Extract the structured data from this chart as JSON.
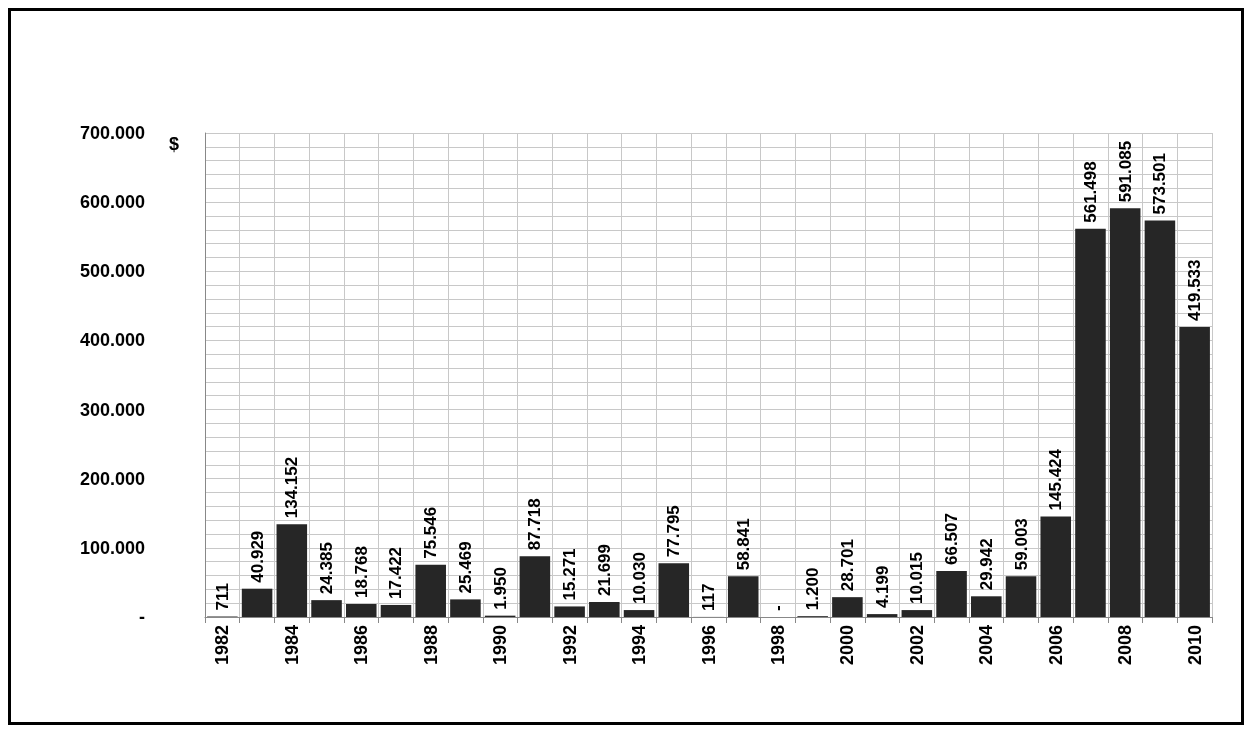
{
  "chart_data": {
    "type": "bar",
    "ylabel": "$",
    "categories": [
      "1982",
      null,
      "1984",
      null,
      "1986",
      null,
      "1988",
      null,
      "1990",
      null,
      "1992",
      null,
      "1994",
      null,
      "1996",
      null,
      "1998",
      null,
      "2000",
      null,
      "2002",
      null,
      "2004",
      null,
      "2006",
      null,
      "2008",
      null,
      "2010"
    ],
    "values": [
      711,
      40929,
      134152,
      24385,
      18768,
      17422,
      75546,
      25469,
      1950,
      87718,
      15271,
      21699,
      10030,
      77795,
      117,
      58841,
      0,
      1200,
      28701,
      4199,
      10015,
      66507,
      29942,
      59003,
      145424,
      561498,
      591085,
      573501,
      419533
    ],
    "value_labels": [
      "711",
      "40.929",
      "134.152",
      "24.385",
      "18.768",
      "17.422",
      "75.546",
      "25.469",
      "1.950",
      "87.718",
      "15.271",
      "21.699",
      "10.030",
      "77.795",
      "117",
      "58.841",
      "-",
      "1.200",
      "28.701",
      "4.199",
      "10.015",
      "66.507",
      "29.942",
      "59.003",
      "145.424",
      "561.498",
      "591.085",
      "573.501",
      "419.533"
    ],
    "color": "#262626",
    "ylim": [
      0,
      700000
    ],
    "yticks": [
      {
        "value": 0,
        "label": "-"
      },
      {
        "value": 20000,
        "label": null
      },
      {
        "value": 40000,
        "label": null
      },
      {
        "value": 60000,
        "label": null
      },
      {
        "value": 80000,
        "label": null
      },
      {
        "value": 100000,
        "label": "100.000"
      },
      {
        "value": 120000,
        "label": null
      },
      {
        "value": 140000,
        "label": null
      },
      {
        "value": 160000,
        "label": null
      },
      {
        "value": 180000,
        "label": null
      },
      {
        "value": 200000,
        "label": "200.000"
      },
      {
        "value": 220000,
        "label": null
      },
      {
        "value": 240000,
        "label": null
      },
      {
        "value": 260000,
        "label": null
      },
      {
        "value": 280000,
        "label": null
      },
      {
        "value": 300000,
        "label": "300.000"
      },
      {
        "value": 320000,
        "label": null
      },
      {
        "value": 340000,
        "label": null
      },
      {
        "value": 360000,
        "label": null
      },
      {
        "value": 380000,
        "label": null
      },
      {
        "value": 400000,
        "label": "400.000"
      },
      {
        "value": 420000,
        "label": null
      },
      {
        "value": 440000,
        "label": null
      },
      {
        "value": 460000,
        "label": null
      },
      {
        "value": 480000,
        "label": null
      },
      {
        "value": 500000,
        "label": "500.000"
      },
      {
        "value": 520000,
        "label": null
      },
      {
        "value": 540000,
        "label": null
      },
      {
        "value": 560000,
        "label": null
      },
      {
        "value": 580000,
        "label": null
      },
      {
        "value": 600000,
        "label": "600.000"
      },
      {
        "value": 620000,
        "label": null
      },
      {
        "value": 640000,
        "label": null
      },
      {
        "value": 660000,
        "label": null
      },
      {
        "value": 680000,
        "label": null
      },
      {
        "value": 700000,
        "label": "700.000"
      }
    ],
    "grid": true
  }
}
